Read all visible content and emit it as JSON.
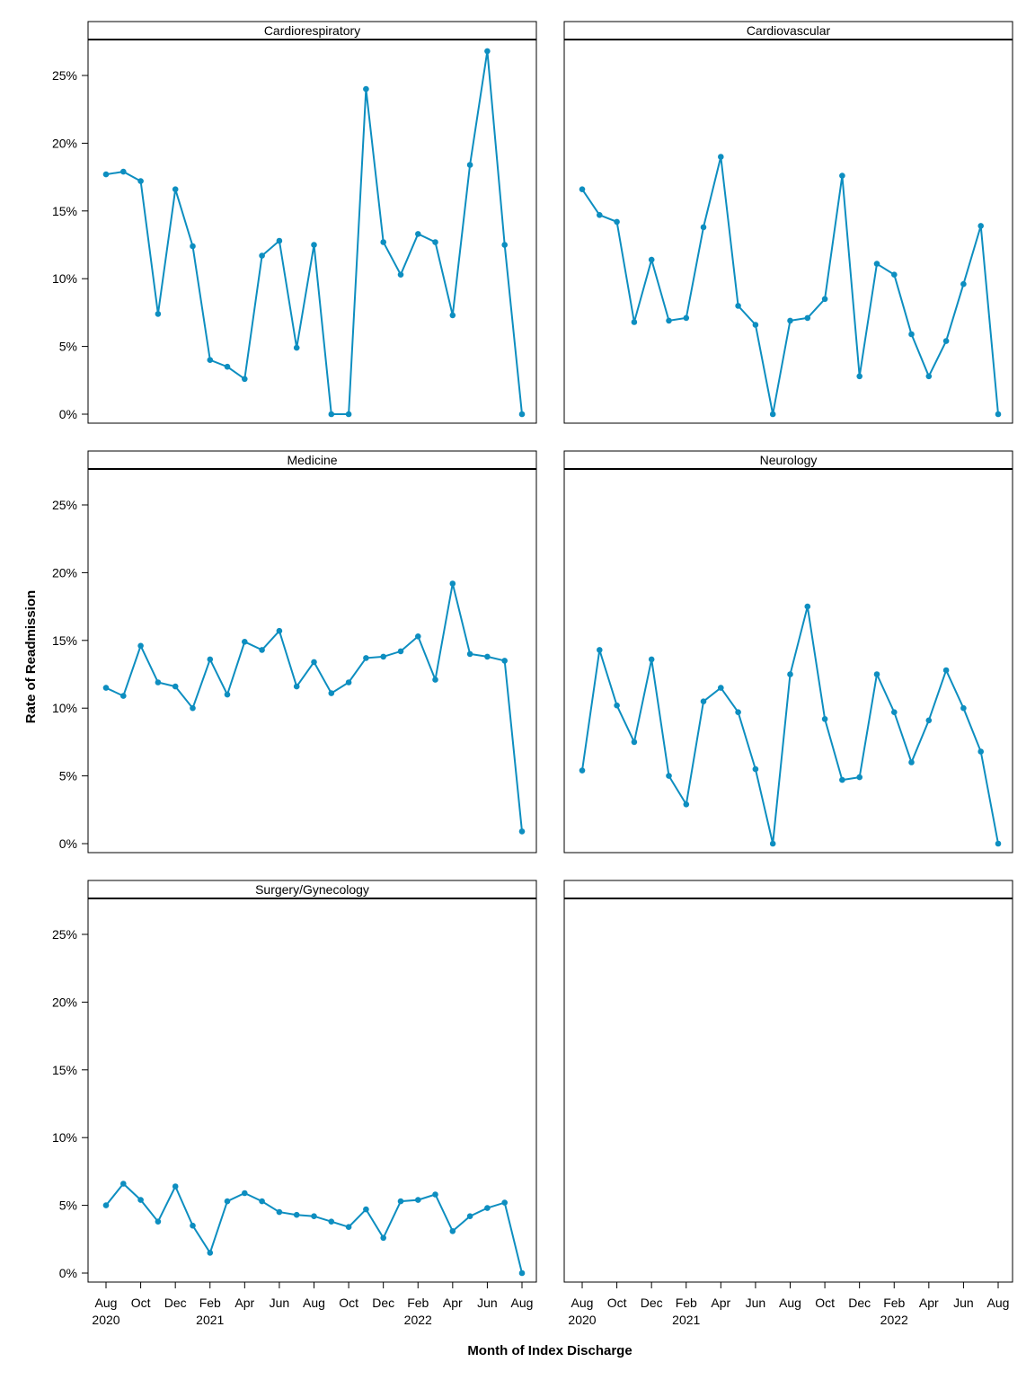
{
  "figure": {
    "ylabel": "Rate of Readmission",
    "xlabel": "Month of Index Discharge"
  },
  "chart_data": {
    "type": "line",
    "xlabel": "Month of Index Discharge",
    "ylabel": "Rate of Readmission",
    "ylim": [
      0,
      0.27
    ],
    "y_ticks": [
      0,
      0.05,
      0.1,
      0.15,
      0.2,
      0.25
    ],
    "y_tick_labels": [
      "0%",
      "5%",
      "10%",
      "15%",
      "20%",
      "25%"
    ],
    "x_months": [
      "2020-08",
      "2020-09",
      "2020-10",
      "2020-11",
      "2020-12",
      "2021-01",
      "2021-02",
      "2021-03",
      "2021-04",
      "2021-05",
      "2021-06",
      "2021-07",
      "2021-08",
      "2021-09",
      "2021-10",
      "2021-11",
      "2021-12",
      "2022-01",
      "2022-02",
      "2022-03",
      "2022-04",
      "2022-05",
      "2022-06",
      "2022-07",
      "2022-08"
    ],
    "x_tick_labels": [
      "Aug",
      "Oct",
      "Dec",
      "Feb",
      "Apr",
      "Jun",
      "Aug",
      "Oct",
      "Dec",
      "Feb",
      "Apr",
      "Jun",
      "Aug"
    ],
    "x_year_labels": [
      "2020",
      "",
      "",
      "2021",
      "",
      "",
      "",
      "",
      "",
      "2022",
      "",
      "",
      ""
    ],
    "line_color": "#0d8ec0",
    "grid": false,
    "panels": [
      {
        "title": "Cardiorespiratory",
        "values": [
          0.177,
          0.179,
          0.172,
          0.074,
          0.166,
          0.124,
          0.04,
          0.035,
          0.026,
          0.117,
          0.128,
          0.049,
          0.125,
          0.0,
          0.0,
          0.24,
          0.127,
          0.103,
          0.133,
          0.127,
          0.073,
          0.184,
          0.268,
          0.125,
          0.0
        ]
      },
      {
        "title": "Cardiovascular",
        "values": [
          0.166,
          0.147,
          0.142,
          0.068,
          0.114,
          0.069,
          0.071,
          0.138,
          0.19,
          0.08,
          0.066,
          0.0,
          0.069,
          0.071,
          0.085,
          0.176,
          0.028,
          0.111,
          0.103,
          0.059,
          0.028,
          0.054,
          0.096,
          0.139,
          0.0
        ]
      },
      {
        "title": "Medicine",
        "values": [
          0.115,
          0.109,
          0.146,
          0.119,
          0.116,
          0.1,
          0.136,
          0.11,
          0.149,
          0.143,
          0.157,
          0.116,
          0.134,
          0.111,
          0.119,
          0.137,
          0.138,
          0.142,
          0.153,
          0.121,
          0.192,
          0.14,
          0.138,
          0.135,
          0.009
        ]
      },
      {
        "title": "Neurology",
        "values": [
          0.054,
          0.143,
          0.102,
          0.075,
          0.136,
          0.05,
          0.029,
          0.105,
          0.115,
          0.097,
          0.055,
          0.0,
          0.125,
          0.175,
          0.092,
          0.047,
          0.049,
          0.125,
          0.097,
          0.06,
          0.091,
          0.128,
          0.1,
          0.068,
          0.0
        ]
      },
      {
        "title": "Surgery/Gynecology",
        "values": [
          0.05,
          0.066,
          0.054,
          0.038,
          0.064,
          0.035,
          0.015,
          0.053,
          0.059,
          0.053,
          0.045,
          0.043,
          0.042,
          0.038,
          0.034,
          0.047,
          0.026,
          0.053,
          0.054,
          0.058,
          0.031,
          0.042,
          0.048,
          0.052,
          0.0
        ]
      },
      {
        "title": "",
        "values": []
      }
    ]
  }
}
